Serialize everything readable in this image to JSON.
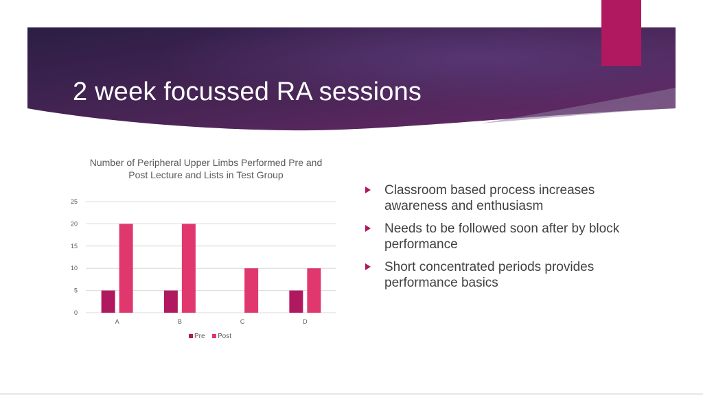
{
  "slide": {
    "title": "2 week focussed RA sessions"
  },
  "colors": {
    "banner_dark": "#2b1e45",
    "banner_mid": "#5a2a5e",
    "banner_accent": "#b0195f",
    "pre_series": "#b0195f",
    "post_series": "#e0386e"
  },
  "bullets": [
    "Classroom based process increases awareness and enthusiasm",
    "Needs to be followed soon after by block performance",
    "Short concentrated periods provides performance basics"
  ],
  "chart_data": {
    "type": "bar",
    "title": "Number of Peripheral Upper Limbs Performed Pre and Post Lecture and Lists in Test Group",
    "categories": [
      "A",
      "B",
      "C",
      "D"
    ],
    "series": [
      {
        "name": "Pre",
        "values": [
          5,
          5,
          0,
          5
        ]
      },
      {
        "name": "Post",
        "values": [
          20,
          20,
          10,
          10
        ]
      }
    ],
    "ylim": [
      0,
      25
    ],
    "yticks": [
      "0",
      "5",
      "10",
      "15",
      "20",
      "25"
    ],
    "grid": true,
    "legend": "bottom",
    "xlabel": "",
    "ylabel": ""
  }
}
